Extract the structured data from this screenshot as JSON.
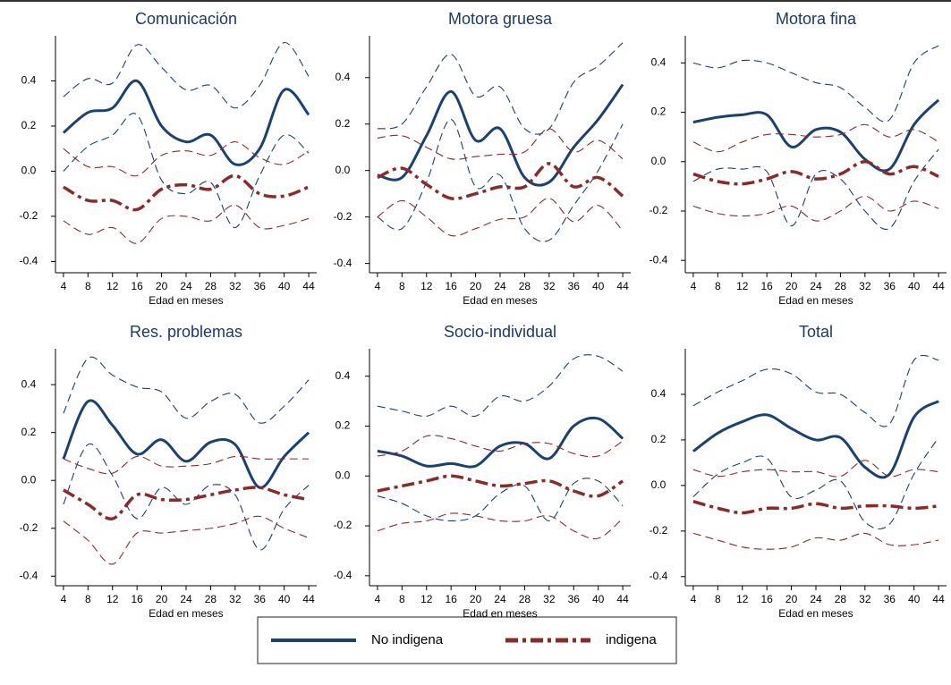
{
  "legend": [
    {
      "name": "No indigena",
      "color": "#1b4170",
      "style": "solid"
    },
    {
      "name": "indigena",
      "color": "#8c2a2a",
      "style": "dashdot"
    }
  ],
  "chart_data": [
    {
      "type": "line",
      "title": "Comunicación",
      "xlabel": "Edad en meses",
      "x": [
        4,
        8,
        12,
        16,
        20,
        24,
        28,
        32,
        36,
        40,
        44
      ],
      "xlim": [
        2.7,
        45.3
      ],
      "xticks": [
        4,
        8,
        12,
        16,
        20,
        24,
        28,
        32,
        36,
        40,
        44
      ],
      "ylim": [
        -0.45,
        0.6
      ],
      "yticks": [
        -0.4,
        -0.2,
        {
          "value": 0,
          "label": "0.0"
        },
        0.2,
        0.4
      ],
      "series": [
        {
          "color": "#1b4170",
          "style": "solid",
          "values": [
            0.17,
            0.26,
            0.28,
            0.4,
            0.2,
            0.13,
            0.16,
            0.03,
            0.1,
            0.36,
            0.25
          ],
          "upper": [
            0.33,
            0.41,
            0.39,
            0.56,
            0.46,
            0.36,
            0.38,
            0.28,
            0.38,
            0.57,
            0.42
          ],
          "lower": [
            0.0,
            0.11,
            0.16,
            0.25,
            -0.04,
            -0.1,
            -0.05,
            -0.25,
            -0.02,
            0.16,
            0.08
          ]
        },
        {
          "color": "#8c2a2a",
          "style": "dashdot",
          "values": [
            -0.07,
            -0.13,
            -0.13,
            -0.17,
            -0.08,
            -0.06,
            -0.08,
            -0.02,
            -0.1,
            -0.11,
            -0.07
          ],
          "upper": [
            0.1,
            0.02,
            0.02,
            -0.02,
            0.07,
            0.09,
            0.07,
            0.13,
            0.06,
            0.03,
            0.09
          ],
          "lower": [
            -0.22,
            -0.28,
            -0.25,
            -0.32,
            -0.21,
            -0.2,
            -0.22,
            -0.15,
            -0.25,
            -0.24,
            -0.21
          ]
        }
      ]
    },
    {
      "type": "line",
      "title": "Motora gruesa",
      "xlabel": "Edad en meses",
      "x": [
        4,
        8,
        12,
        16,
        20,
        24,
        28,
        32,
        36,
        40,
        44
      ],
      "xlim": [
        2.7,
        45.3
      ],
      "xticks": [
        4,
        8,
        12,
        16,
        20,
        24,
        28,
        32,
        36,
        40,
        44
      ],
      "ylim": [
        -0.44,
        0.58
      ],
      "yticks": [
        -0.4,
        -0.2,
        {
          "value": 0,
          "label": "0.0"
        },
        0.2,
        0.4
      ],
      "series": [
        {
          "color": "#1b4170",
          "style": "solid",
          "values": [
            -0.02,
            -0.03,
            0.15,
            0.34,
            0.13,
            0.18,
            -0.03,
            -0.05,
            0.1,
            0.22,
            0.37
          ],
          "upper": [
            0.18,
            0.2,
            0.36,
            0.5,
            0.32,
            0.36,
            0.18,
            0.18,
            0.38,
            0.45,
            0.55
          ],
          "lower": [
            -0.2,
            -0.25,
            -0.05,
            0.22,
            -0.07,
            -0.02,
            -0.25,
            -0.3,
            -0.15,
            0.0,
            0.2
          ]
        },
        {
          "color": "#8c2a2a",
          "style": "dashdot",
          "values": [
            -0.03,
            0.01,
            -0.06,
            -0.12,
            -0.1,
            -0.07,
            -0.07,
            0.03,
            -0.07,
            -0.03,
            -0.11
          ],
          "upper": [
            0.14,
            0.15,
            0.1,
            0.05,
            0.06,
            0.07,
            0.08,
            0.18,
            0.08,
            0.13,
            0.05
          ],
          "lower": [
            -0.2,
            -0.13,
            -0.2,
            -0.28,
            -0.25,
            -0.21,
            -0.2,
            -0.12,
            -0.22,
            -0.15,
            -0.26
          ]
        }
      ]
    },
    {
      "type": "line",
      "title": "Motora fina",
      "xlabel": "Edad en meses",
      "x": [
        4,
        8,
        12,
        16,
        20,
        24,
        28,
        32,
        36,
        40,
        44
      ],
      "xlim": [
        2.7,
        45.3
      ],
      "xticks": [
        4,
        8,
        12,
        16,
        20,
        24,
        28,
        32,
        36,
        40,
        44
      ],
      "ylim": [
        -0.45,
        0.51
      ],
      "yticks": [
        -0.4,
        -0.2,
        {
          "value": 0,
          "label": "0.0"
        },
        0.2,
        0.4
      ],
      "series": [
        {
          "color": "#1b4170",
          "style": "solid",
          "values": [
            0.16,
            0.18,
            0.19,
            0.19,
            0.06,
            0.13,
            0.12,
            0.01,
            -0.03,
            0.15,
            0.25
          ],
          "upper": [
            0.4,
            0.38,
            0.41,
            0.4,
            0.36,
            0.32,
            0.3,
            0.22,
            0.17,
            0.4,
            0.47
          ],
          "lower": [
            -0.08,
            -0.03,
            -0.03,
            -0.04,
            -0.26,
            -0.05,
            -0.07,
            -0.2,
            -0.27,
            -0.08,
            0.05
          ]
        },
        {
          "color": "#8c2a2a",
          "style": "dashdot",
          "values": [
            -0.05,
            -0.08,
            -0.09,
            -0.07,
            -0.04,
            -0.07,
            -0.05,
            0.0,
            -0.05,
            -0.02,
            -0.06
          ],
          "upper": [
            0.08,
            0.04,
            0.08,
            0.11,
            0.11,
            0.1,
            0.11,
            0.15,
            0.1,
            0.13,
            0.08
          ],
          "lower": [
            -0.18,
            -0.21,
            -0.22,
            -0.21,
            -0.18,
            -0.24,
            -0.2,
            -0.14,
            -0.2,
            -0.16,
            -0.19
          ]
        }
      ]
    },
    {
      "type": "line",
      "title": "Res. problemas",
      "xlabel": "Edad en meses",
      "x": [
        4,
        8,
        12,
        16,
        20,
        24,
        28,
        32,
        36,
        40,
        44
      ],
      "xlim": [
        2.7,
        45.3
      ],
      "xticks": [
        4,
        8,
        12,
        16,
        20,
        24,
        28,
        32,
        36,
        40,
        44
      ],
      "ylim": [
        -0.44,
        0.55
      ],
      "yticks": [
        -0.4,
        -0.2,
        {
          "value": 0,
          "label": "0.0"
        },
        0.2,
        0.4
      ],
      "series": [
        {
          "color": "#1b4170",
          "style": "solid",
          "values": [
            0.09,
            0.33,
            0.23,
            0.11,
            0.17,
            0.08,
            0.16,
            0.15,
            -0.03,
            0.1,
            0.2
          ],
          "upper": [
            0.28,
            0.51,
            0.44,
            0.39,
            0.37,
            0.26,
            0.33,
            0.36,
            0.24,
            0.31,
            0.42
          ],
          "lower": [
            -0.1,
            0.15,
            0.02,
            -0.16,
            -0.03,
            -0.1,
            -0.02,
            -0.06,
            -0.29,
            -0.12,
            -0.02
          ]
        },
        {
          "color": "#8c2a2a",
          "style": "dashdot",
          "values": [
            -0.04,
            -0.1,
            -0.16,
            -0.06,
            -0.08,
            -0.08,
            -0.06,
            -0.04,
            -0.03,
            -0.06,
            -0.08
          ],
          "upper": [
            0.09,
            0.05,
            0.03,
            0.1,
            0.06,
            0.06,
            0.07,
            0.1,
            0.09,
            0.09,
            0.09
          ],
          "lower": [
            -0.17,
            -0.25,
            -0.35,
            -0.22,
            -0.22,
            -0.21,
            -0.2,
            -0.18,
            -0.15,
            -0.2,
            -0.24
          ]
        }
      ]
    },
    {
      "type": "line",
      "title": "Socio-individual",
      "xlabel": "Edad en meses",
      "x": [
        4,
        8,
        12,
        16,
        20,
        24,
        28,
        32,
        36,
        40,
        44
      ],
      "xlim": [
        2.7,
        45.3
      ],
      "xticks": [
        4,
        8,
        12,
        16,
        20,
        24,
        28,
        32,
        36,
        40,
        44
      ],
      "ylim": [
        -0.44,
        0.51
      ],
      "yticks": [
        -0.4,
        -0.2,
        {
          "value": 0,
          "label": "0.0"
        },
        0.2,
        0.4
      ],
      "series": [
        {
          "color": "#1b4170",
          "style": "solid",
          "values": [
            0.1,
            0.08,
            0.04,
            0.05,
            0.04,
            0.12,
            0.13,
            0.07,
            0.2,
            0.23,
            0.15
          ],
          "upper": [
            0.28,
            0.26,
            0.24,
            0.28,
            0.24,
            0.32,
            0.3,
            0.36,
            0.47,
            0.48,
            0.42
          ],
          "lower": [
            -0.08,
            -0.11,
            -0.16,
            -0.18,
            -0.16,
            -0.07,
            -0.04,
            -0.18,
            -0.03,
            -0.02,
            -0.12
          ]
        },
        {
          "color": "#8c2a2a",
          "style": "dashdot",
          "values": [
            -0.06,
            -0.04,
            -0.02,
            0.0,
            -0.02,
            -0.04,
            -0.03,
            -0.02,
            -0.06,
            -0.08,
            -0.02
          ],
          "upper": [
            0.08,
            0.1,
            0.16,
            0.15,
            0.12,
            0.1,
            0.13,
            0.13,
            0.09,
            0.08,
            0.14
          ],
          "lower": [
            -0.22,
            -0.19,
            -0.18,
            -0.15,
            -0.16,
            -0.18,
            -0.18,
            -0.16,
            -0.22,
            -0.25,
            -0.17
          ]
        }
      ]
    },
    {
      "type": "line",
      "title": "Total",
      "xlabel": "Edad en meses",
      "x": [
        4,
        8,
        12,
        16,
        20,
        24,
        28,
        32,
        36,
        40,
        44
      ],
      "xlim": [
        2.7,
        45.3
      ],
      "xticks": [
        4,
        8,
        12,
        16,
        20,
        24,
        28,
        32,
        36,
        40,
        44
      ],
      "ylim": [
        -0.44,
        0.6
      ],
      "yticks": [
        -0.4,
        -0.2,
        {
          "value": 0,
          "label": "0.0"
        },
        0.2,
        0.4
      ],
      "series": [
        {
          "color": "#1b4170",
          "style": "solid",
          "values": [
            0.15,
            0.23,
            0.28,
            0.31,
            0.25,
            0.2,
            0.21,
            0.08,
            0.05,
            0.3,
            0.37
          ],
          "upper": [
            0.35,
            0.41,
            0.46,
            0.51,
            0.49,
            0.41,
            0.4,
            0.32,
            0.27,
            0.55,
            0.55
          ],
          "lower": [
            -0.05,
            0.05,
            0.1,
            0.12,
            -0.05,
            -0.02,
            0.02,
            -0.16,
            -0.17,
            0.05,
            0.21
          ]
        },
        {
          "color": "#8c2a2a",
          "style": "dashdot",
          "values": [
            -0.07,
            -0.1,
            -0.12,
            -0.1,
            -0.1,
            -0.08,
            -0.1,
            -0.09,
            -0.09,
            -0.1,
            -0.09
          ],
          "upper": [
            0.07,
            0.04,
            0.06,
            0.07,
            0.06,
            0.06,
            0.04,
            0.11,
            0.04,
            0.07,
            0.06
          ],
          "lower": [
            -0.21,
            -0.24,
            -0.27,
            -0.28,
            -0.27,
            -0.23,
            -0.24,
            -0.21,
            -0.26,
            -0.26,
            -0.24
          ]
        }
      ]
    }
  ]
}
